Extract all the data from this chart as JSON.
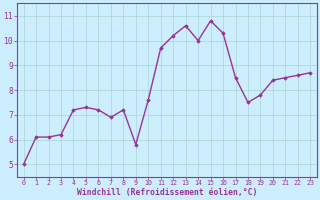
{
  "x": [
    0,
    1,
    2,
    3,
    4,
    5,
    6,
    7,
    8,
    9,
    10,
    11,
    12,
    13,
    14,
    15,
    16,
    17,
    18,
    19,
    20,
    21,
    22,
    23
  ],
  "y": [
    5.0,
    6.1,
    6.1,
    6.2,
    7.2,
    7.3,
    7.2,
    6.9,
    7.2,
    5.8,
    7.6,
    9.7,
    10.2,
    10.6,
    10.0,
    10.8,
    10.3,
    8.5,
    7.5,
    7.8,
    8.4,
    8.5,
    8.6,
    8.7
  ],
  "xlabel": "Windchill (Refroidissement éolien,°C)",
  "ylim": [
    4.5,
    11.5
  ],
  "xlim": [
    -0.5,
    23.5
  ],
  "yticks": [
    5,
    6,
    7,
    8,
    9,
    10,
    11
  ],
  "xticks": [
    0,
    1,
    2,
    3,
    4,
    5,
    6,
    7,
    8,
    9,
    10,
    11,
    12,
    13,
    14,
    15,
    16,
    17,
    18,
    19,
    20,
    21,
    22,
    23
  ],
  "line_color": "#993399",
  "marker": "D",
  "marker_size": 1.8,
  "bg_color": "#cceeff",
  "grid_color": "#b0d8d8",
  "axis_color": "#993399",
  "label_color": "#993399",
  "tick_color": "#993399",
  "xlabel_fontsize": 5.8,
  "ytick_fontsize": 5.8,
  "xtick_fontsize": 4.8,
  "linewidth": 1.0
}
